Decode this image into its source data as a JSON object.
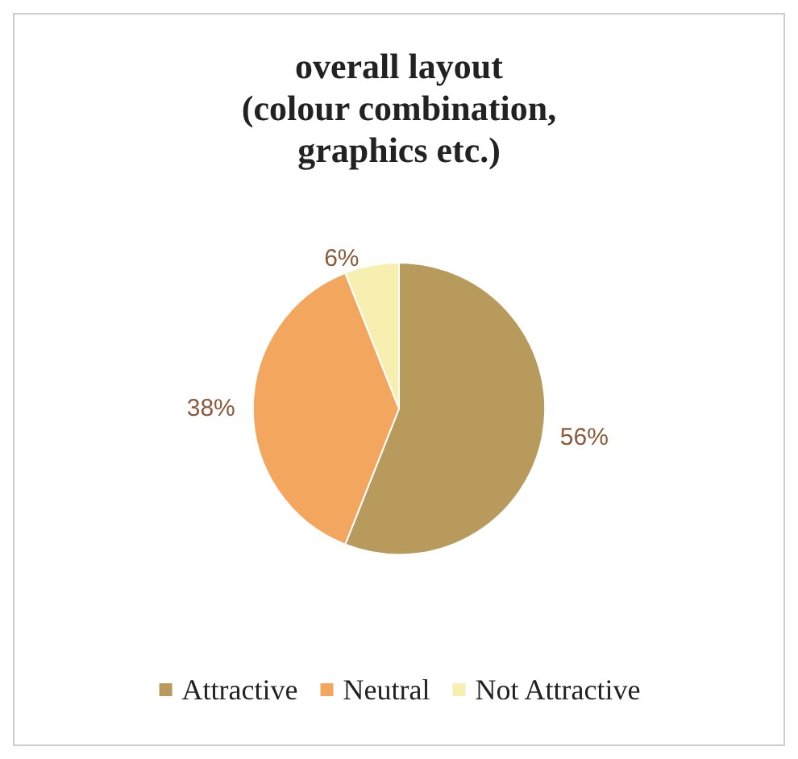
{
  "chart_data": {
    "type": "pie",
    "title": "overall layout\n(colour combination,\ngraphics etc.)",
    "categories": [
      "Attractive",
      "Neutral",
      "Not Attractive"
    ],
    "values": [
      56,
      38,
      6
    ],
    "colors": [
      "#b89a5c",
      "#f2a65e",
      "#f7efb0"
    ],
    "value_labels": [
      "56%",
      "38%",
      "6%"
    ],
    "legend": "bottom"
  }
}
